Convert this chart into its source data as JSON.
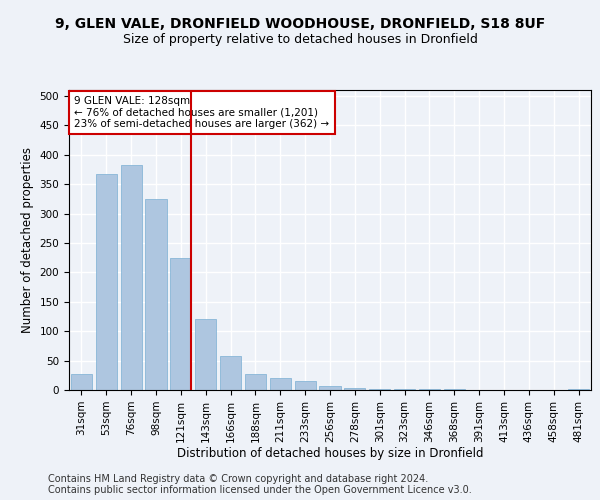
{
  "title_line1": "9, GLEN VALE, DRONFIELD WOODHOUSE, DRONFIELD, S18 8UF",
  "title_line2": "Size of property relative to detached houses in Dronfield",
  "xlabel": "Distribution of detached houses by size in Dronfield",
  "ylabel": "Number of detached properties",
  "categories": [
    "31sqm",
    "53sqm",
    "76sqm",
    "98sqm",
    "121sqm",
    "143sqm",
    "166sqm",
    "188sqm",
    "211sqm",
    "233sqm",
    "256sqm",
    "278sqm",
    "301sqm",
    "323sqm",
    "346sqm",
    "368sqm",
    "391sqm",
    "413sqm",
    "436sqm",
    "458sqm",
    "481sqm"
  ],
  "values": [
    28,
    367,
    383,
    325,
    225,
    120,
    57,
    28,
    20,
    15,
    7,
    4,
    2,
    1,
    1,
    1,
    0,
    0,
    0,
    0,
    2
  ],
  "bar_color": "#aec6e0",
  "bar_edge_color": "#7aafd4",
  "marker_bin_index": 4,
  "marker_color": "#cc0000",
  "annotation_text": "9 GLEN VALE: 128sqm\n← 76% of detached houses are smaller (1,201)\n23% of semi-detached houses are larger (362) →",
  "annotation_box_color": "#ffffff",
  "annotation_box_edge": "#cc0000",
  "ylim": [
    0,
    510
  ],
  "yticks": [
    0,
    50,
    100,
    150,
    200,
    250,
    300,
    350,
    400,
    450,
    500
  ],
  "footer_line1": "Contains HM Land Registry data © Crown copyright and database right 2024.",
  "footer_line2": "Contains public sector information licensed under the Open Government Licence v3.0.",
  "background_color": "#eef2f8",
  "plot_bg_color": "#eef2f8",
  "grid_color": "#ffffff",
  "title_fontsize": 10,
  "subtitle_fontsize": 9,
  "axis_label_fontsize": 8.5,
  "tick_fontsize": 7.5,
  "footer_fontsize": 7
}
